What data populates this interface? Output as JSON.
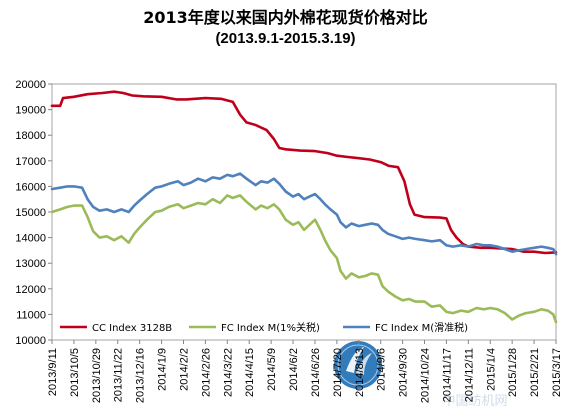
{
  "chart_data": {
    "type": "line",
    "title": "2013年度以来国内外棉花现货价格对比",
    "subtitle": "(2013.9.1-2015.3.19)",
    "xlabel": "",
    "ylabel": "",
    "ylim": [
      10000,
      20000
    ],
    "yticks": [
      10000,
      11000,
      12000,
      13000,
      14000,
      15000,
      16000,
      17000,
      18000,
      19000,
      20000
    ],
    "grid": "none",
    "legend_position": "bottom-left",
    "xlim": [
      "2013-09-11",
      "2015-03-17"
    ],
    "xticks": [
      "2013/9/11",
      "2013/10/5",
      "2013/10/29",
      "2013/11/22",
      "2013/12/16",
      "2014/1/9",
      "2014/2/2",
      "2014/2/26",
      "2014/3/22",
      "2014/4/15",
      "2014/5/9",
      "2014/6/2",
      "2014/6/26",
      "2014/7/20",
      "2014/8/13",
      "2014/9/6",
      "2014/9/30",
      "2014/10/24",
      "2014/11/17",
      "2014/12/11",
      "2015/1/4",
      "2015/1/28",
      "2015/2/21",
      "2015/3/17"
    ],
    "series": [
      {
        "name": "CC Index 3128B",
        "color": "#c0001b",
        "points": [
          [
            "2013-09-11",
            19150
          ],
          [
            "2013-09-20",
            19150
          ],
          [
            "2013-09-23",
            19450
          ],
          [
            "2013-10-05",
            19500
          ],
          [
            "2013-10-20",
            19600
          ],
          [
            "2013-11-05",
            19650
          ],
          [
            "2013-11-18",
            19700
          ],
          [
            "2013-11-28",
            19650
          ],
          [
            "2013-12-08",
            19550
          ],
          [
            "2013-12-20",
            19520
          ],
          [
            "2014-01-09",
            19500
          ],
          [
            "2014-01-25",
            19400
          ],
          [
            "2014-02-05",
            19400
          ],
          [
            "2014-02-26",
            19450
          ],
          [
            "2014-03-15",
            19420
          ],
          [
            "2014-03-28",
            19300
          ],
          [
            "2014-04-05",
            18800
          ],
          [
            "2014-04-12",
            18500
          ],
          [
            "2014-04-22",
            18400
          ],
          [
            "2014-05-04",
            18200
          ],
          [
            "2014-05-12",
            17850
          ],
          [
            "2014-05-18",
            17500
          ],
          [
            "2014-05-25",
            17450
          ],
          [
            "2014-06-10",
            17400
          ],
          [
            "2014-06-26",
            17380
          ],
          [
            "2014-07-10",
            17300
          ],
          [
            "2014-07-20",
            17200
          ],
          [
            "2014-08-01",
            17150
          ],
          [
            "2014-08-13",
            17100
          ],
          [
            "2014-08-25",
            17050
          ],
          [
            "2014-09-06",
            16950
          ],
          [
            "2014-09-15",
            16800
          ],
          [
            "2014-09-25",
            16750
          ],
          [
            "2014-10-02",
            16200
          ],
          [
            "2014-10-08",
            15300
          ],
          [
            "2014-10-13",
            14900
          ],
          [
            "2014-10-24",
            14800
          ],
          [
            "2014-11-10",
            14780
          ],
          [
            "2014-11-17",
            14750
          ],
          [
            "2014-11-22",
            14300
          ],
          [
            "2014-11-28",
            14000
          ],
          [
            "2014-12-05",
            13750
          ],
          [
            "2014-12-11",
            13650
          ],
          [
            "2014-12-25",
            13600
          ],
          [
            "2015-01-04",
            13600
          ],
          [
            "2015-01-28",
            13550
          ],
          [
            "2015-02-10",
            13450
          ],
          [
            "2015-02-21",
            13450
          ],
          [
            "2015-03-05",
            13400
          ],
          [
            "2015-03-17",
            13420
          ]
        ]
      },
      {
        "name": "FC Index M(1%关税)",
        "color": "#9bbb59",
        "points": [
          [
            "2013-09-11",
            15000
          ],
          [
            "2013-09-20",
            15100
          ],
          [
            "2013-09-28",
            15200
          ],
          [
            "2013-10-05",
            15250
          ],
          [
            "2013-10-14",
            15250
          ],
          [
            "2013-10-20",
            14800
          ],
          [
            "2013-10-26",
            14250
          ],
          [
            "2013-11-02",
            14000
          ],
          [
            "2013-11-10",
            14050
          ],
          [
            "2013-11-18",
            13900
          ],
          [
            "2013-11-26",
            14050
          ],
          [
            "2013-12-04",
            13800
          ],
          [
            "2013-12-10",
            14150
          ],
          [
            "2013-12-16",
            14400
          ],
          [
            "2013-12-24",
            14700
          ],
          [
            "2014-01-02",
            15000
          ],
          [
            "2014-01-09",
            15050
          ],
          [
            "2014-01-17",
            15200
          ],
          [
            "2014-01-27",
            15300
          ],
          [
            "2014-02-02",
            15150
          ],
          [
            "2014-02-10",
            15250
          ],
          [
            "2014-02-18",
            15350
          ],
          [
            "2014-02-26",
            15300
          ],
          [
            "2014-03-06",
            15500
          ],
          [
            "2014-03-14",
            15350
          ],
          [
            "2014-03-22",
            15650
          ],
          [
            "2014-03-28",
            15550
          ],
          [
            "2014-04-05",
            15650
          ],
          [
            "2014-04-12",
            15400
          ],
          [
            "2014-04-22",
            15100
          ],
          [
            "2014-04-28",
            15250
          ],
          [
            "2014-05-05",
            15150
          ],
          [
            "2014-05-12",
            15300
          ],
          [
            "2014-05-18",
            15100
          ],
          [
            "2014-05-25",
            14700
          ],
          [
            "2014-06-02",
            14500
          ],
          [
            "2014-06-08",
            14600
          ],
          [
            "2014-06-14",
            14300
          ],
          [
            "2014-06-20",
            14500
          ],
          [
            "2014-06-26",
            14700
          ],
          [
            "2014-07-02",
            14300
          ],
          [
            "2014-07-07",
            13900
          ],
          [
            "2014-07-13",
            13500
          ],
          [
            "2014-07-20",
            13200
          ],
          [
            "2014-07-24",
            12700
          ],
          [
            "2014-07-30",
            12400
          ],
          [
            "2014-08-05",
            12600
          ],
          [
            "2014-08-13",
            12450
          ],
          [
            "2014-08-20",
            12500
          ],
          [
            "2014-08-27",
            12600
          ],
          [
            "2014-09-03",
            12550
          ],
          [
            "2014-09-08",
            12100
          ],
          [
            "2014-09-14",
            11900
          ],
          [
            "2014-09-22",
            11700
          ],
          [
            "2014-09-30",
            11550
          ],
          [
            "2014-10-07",
            11600
          ],
          [
            "2014-10-14",
            11500
          ],
          [
            "2014-10-24",
            11500
          ],
          [
            "2014-11-01",
            11300
          ],
          [
            "2014-11-10",
            11350
          ],
          [
            "2014-11-17",
            11100
          ],
          [
            "2014-11-24",
            11050
          ],
          [
            "2014-12-03",
            11150
          ],
          [
            "2014-12-11",
            11100
          ],
          [
            "2014-12-20",
            11250
          ],
          [
            "2014-12-28",
            11200
          ],
          [
            "2015-01-04",
            11250
          ],
          [
            "2015-01-12",
            11200
          ],
          [
            "2015-01-20",
            11050
          ],
          [
            "2015-01-28",
            10800
          ],
          [
            "2015-02-04",
            10950
          ],
          [
            "2015-02-12",
            11050
          ],
          [
            "2015-02-21",
            11100
          ],
          [
            "2015-03-01",
            11200
          ],
          [
            "2015-03-08",
            11150
          ],
          [
            "2015-03-14",
            11000
          ],
          [
            "2015-03-17",
            10700
          ]
        ]
      },
      {
        "name": "FC Index M(滑准税)",
        "color": "#4f81bd",
        "points": [
          [
            "2013-09-11",
            15900
          ],
          [
            "2013-09-20",
            15950
          ],
          [
            "2013-09-28",
            16000
          ],
          [
            "2013-10-05",
            16000
          ],
          [
            "2013-10-14",
            15950
          ],
          [
            "2013-10-20",
            15500
          ],
          [
            "2013-10-26",
            15200
          ],
          [
            "2013-11-02",
            15050
          ],
          [
            "2013-11-10",
            15100
          ],
          [
            "2013-11-18",
            15000
          ],
          [
            "2013-11-26",
            15100
          ],
          [
            "2013-12-04",
            15000
          ],
          [
            "2013-12-10",
            15250
          ],
          [
            "2013-12-16",
            15450
          ],
          [
            "2013-12-24",
            15700
          ],
          [
            "2014-01-02",
            15950
          ],
          [
            "2014-01-09",
            16000
          ],
          [
            "2014-01-17",
            16100
          ],
          [
            "2014-01-27",
            16200
          ],
          [
            "2014-02-02",
            16050
          ],
          [
            "2014-02-10",
            16150
          ],
          [
            "2014-02-18",
            16300
          ],
          [
            "2014-02-26",
            16200
          ],
          [
            "2014-03-06",
            16350
          ],
          [
            "2014-03-14",
            16300
          ],
          [
            "2014-03-22",
            16450
          ],
          [
            "2014-03-28",
            16400
          ],
          [
            "2014-04-05",
            16500
          ],
          [
            "2014-04-12",
            16300
          ],
          [
            "2014-04-22",
            16050
          ],
          [
            "2014-04-28",
            16200
          ],
          [
            "2014-05-05",
            16150
          ],
          [
            "2014-05-12",
            16300
          ],
          [
            "2014-05-18",
            16100
          ],
          [
            "2014-05-25",
            15800
          ],
          [
            "2014-06-02",
            15600
          ],
          [
            "2014-06-08",
            15700
          ],
          [
            "2014-06-14",
            15500
          ],
          [
            "2014-06-20",
            15600
          ],
          [
            "2014-06-26",
            15700
          ],
          [
            "2014-07-02",
            15500
          ],
          [
            "2014-07-07",
            15300
          ],
          [
            "2014-07-13",
            15100
          ],
          [
            "2014-07-20",
            14900
          ],
          [
            "2014-07-24",
            14600
          ],
          [
            "2014-07-30",
            14400
          ],
          [
            "2014-08-05",
            14550
          ],
          [
            "2014-08-13",
            14450
          ],
          [
            "2014-08-20",
            14500
          ],
          [
            "2014-08-27",
            14550
          ],
          [
            "2014-09-03",
            14500
          ],
          [
            "2014-09-08",
            14300
          ],
          [
            "2014-09-14",
            14150
          ],
          [
            "2014-09-22",
            14050
          ],
          [
            "2014-09-30",
            13950
          ],
          [
            "2014-10-07",
            14000
          ],
          [
            "2014-10-14",
            13950
          ],
          [
            "2014-10-24",
            13900
          ],
          [
            "2014-11-01",
            13850
          ],
          [
            "2014-11-10",
            13900
          ],
          [
            "2014-11-17",
            13700
          ],
          [
            "2014-11-24",
            13650
          ],
          [
            "2014-12-03",
            13700
          ],
          [
            "2014-12-11",
            13650
          ],
          [
            "2014-12-20",
            13750
          ],
          [
            "2014-12-28",
            13700
          ],
          [
            "2015-01-04",
            13700
          ],
          [
            "2015-01-12",
            13650
          ],
          [
            "2015-01-20",
            13550
          ],
          [
            "2015-01-28",
            13450
          ],
          [
            "2015-02-04",
            13500
          ],
          [
            "2015-02-12",
            13550
          ],
          [
            "2015-02-21",
            13600
          ],
          [
            "2015-03-01",
            13650
          ],
          [
            "2015-03-08",
            13600
          ],
          [
            "2015-03-14",
            13550
          ],
          [
            "2015-03-17",
            13350
          ]
        ]
      }
    ]
  },
  "watermark": {
    "text": "中国纺机网"
  }
}
